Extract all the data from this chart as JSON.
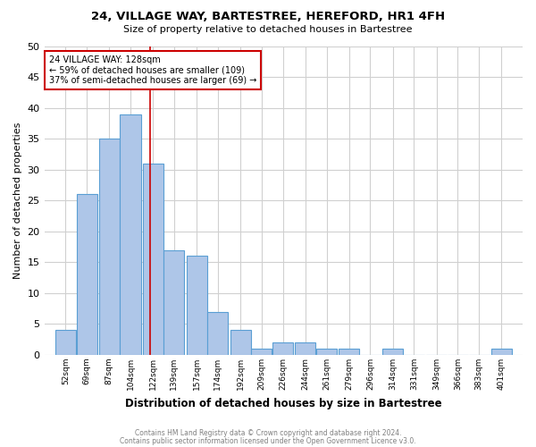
{
  "title1": "24, VILLAGE WAY, BARTESTREE, HEREFORD, HR1 4FH",
  "title2": "Size of property relative to detached houses in Bartestree",
  "xlabel": "Distribution of detached houses by size in Bartestree",
  "ylabel": "Number of detached properties",
  "bin_labels": [
    "52sqm",
    "69sqm",
    "87sqm",
    "104sqm",
    "122sqm",
    "139sqm",
    "157sqm",
    "174sqm",
    "192sqm",
    "209sqm",
    "226sqm",
    "244sqm",
    "261sqm",
    "279sqm",
    "296sqm",
    "314sqm",
    "331sqm",
    "349sqm",
    "366sqm",
    "383sqm",
    "401sqm"
  ],
  "bar_heights": [
    4,
    26,
    35,
    39,
    31,
    17,
    16,
    7,
    4,
    1,
    2,
    2,
    1,
    1,
    0,
    1,
    0,
    0,
    0,
    0,
    1
  ],
  "bar_color": "#aec6e8",
  "bar_edge_color": "#5a9fd4",
  "bin_edges": [
    52,
    69,
    87,
    104,
    122,
    139,
    157,
    174,
    192,
    209,
    226,
    244,
    261,
    279,
    296,
    314,
    331,
    349,
    366,
    383,
    401
  ],
  "bin_width": 17,
  "vline_x": 128,
  "ylim": [
    0,
    50
  ],
  "yticks": [
    0,
    5,
    10,
    15,
    20,
    25,
    30,
    35,
    40,
    45,
    50
  ],
  "annotation_text": "24 VILLAGE WAY: 128sqm\n← 59% of detached houses are smaller (109)\n37% of semi-detached houses are larger (69) →",
  "annotation_box_color": "#ffffff",
  "annotation_box_edge_color": "#cc0000",
  "vline_color": "#cc0000",
  "footer1": "Contains HM Land Registry data © Crown copyright and database right 2024.",
  "footer2": "Contains public sector information licensed under the Open Government Licence v3.0.",
  "background_color": "#ffffff",
  "grid_color": "#d0d0d0"
}
